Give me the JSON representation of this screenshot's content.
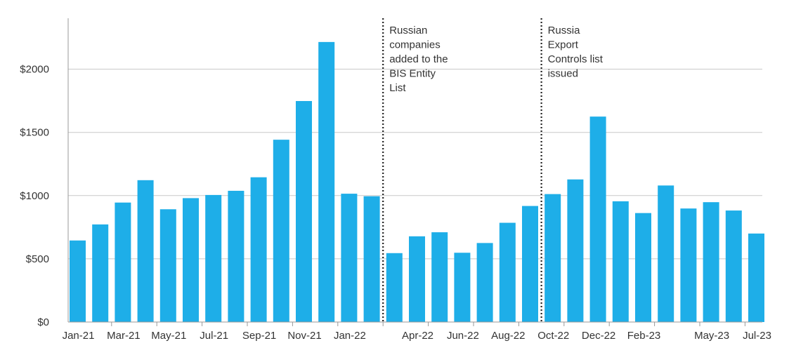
{
  "chart_data": {
    "type": "bar",
    "title": "",
    "xlabel": "",
    "ylabel": "",
    "ylim": [
      0,
      2400
    ],
    "y_ticks": [
      0,
      500,
      1000,
      1500,
      2000
    ],
    "y_tick_labels": [
      "$0",
      "$500",
      "$1000",
      "$1500",
      "$2000"
    ],
    "categories": [
      "Jan-21",
      "Feb-21",
      "Mar-21",
      "Apr-21",
      "May-21",
      "Jun-21",
      "Jul-21",
      "Aug-21",
      "Sep-21",
      "Oct-21",
      "Nov-21",
      "Dec-21",
      "Jan-22",
      "Feb-22",
      "Mar-22",
      "Apr-22",
      "May-22",
      "Jun-22",
      "Jul-22",
      "Aug-22",
      "Sep-22",
      "Oct-22",
      "Nov-22",
      "Dec-22",
      "Jan-23",
      "Feb-23",
      "Mar-23",
      "Apr-23",
      "May-23",
      "Jun-23",
      "Jul-23"
    ],
    "values": [
      645,
      772,
      945,
      1122,
      892,
      980,
      1005,
      1038,
      1145,
      1442,
      1748,
      2215,
      1015,
      995,
      545,
      678,
      710,
      548,
      625,
      785,
      918,
      1012,
      1128,
      1625,
      955,
      862,
      1080,
      898,
      948,
      882,
      700
    ],
    "x_tick_labels": [
      {
        "index": 0,
        "label": "Jan-21"
      },
      {
        "index": 2,
        "label": "Mar-21"
      },
      {
        "index": 4,
        "label": "May-21"
      },
      {
        "index": 6,
        "label": "Jul-21"
      },
      {
        "index": 8,
        "label": "Sep-21"
      },
      {
        "index": 10,
        "label": "Nov-21"
      },
      {
        "index": 12,
        "label": "Jan-22"
      },
      {
        "index": 15,
        "label": "Apr-22"
      },
      {
        "index": 17,
        "label": "Jun-22"
      },
      {
        "index": 19,
        "label": "Aug-22"
      },
      {
        "index": 21,
        "label": "Oct-22"
      },
      {
        "index": 23,
        "label": "Dec-22"
      },
      {
        "index": 25,
        "label": "Feb-23"
      },
      {
        "index": 28,
        "label": "May-23"
      },
      {
        "index": 30,
        "label": "Jul-23"
      }
    ],
    "annotations": [
      {
        "between": [
          13,
          14
        ],
        "lines": [
          "Russian",
          "companies",
          "added to the",
          "BIS Entity",
          "List"
        ]
      },
      {
        "between": [
          20,
          21
        ],
        "lines": [
          "Russia",
          "Export",
          "Controls list",
          "issued"
        ]
      }
    ],
    "grid": true,
    "colors": {
      "bar": "#1eaee8",
      "grid": "#c8c8c8",
      "axis": "#999999",
      "text": "#333333",
      "annotation_line": "#222222"
    }
  }
}
